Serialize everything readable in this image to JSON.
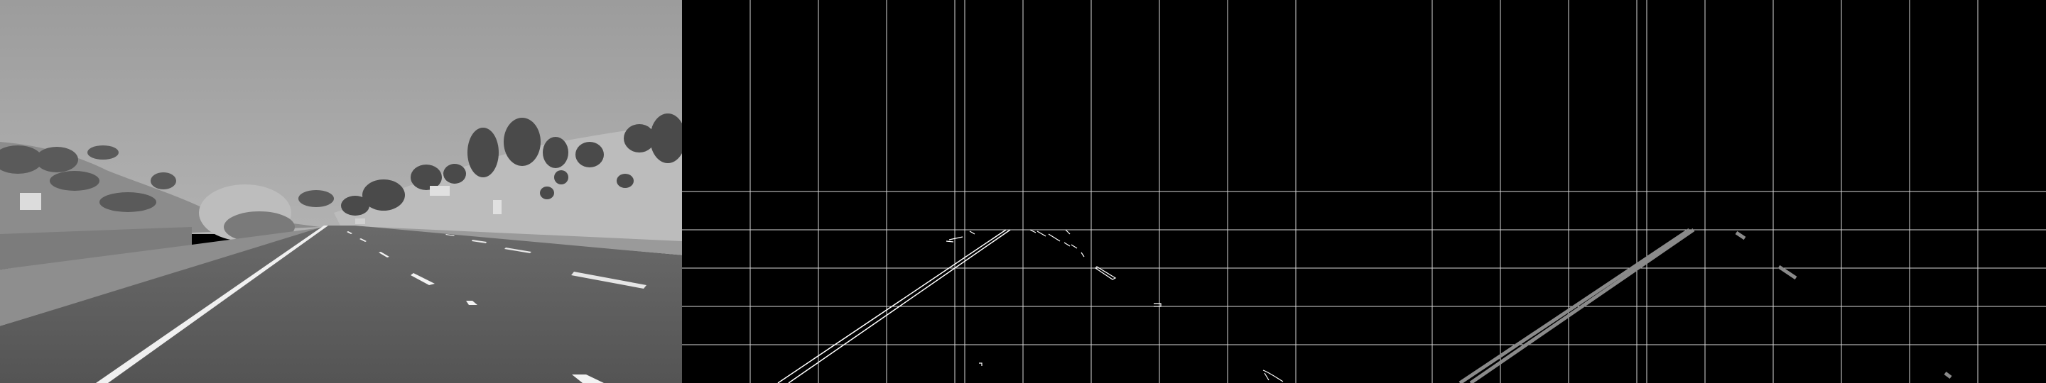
{
  "panels": [
    {
      "name": "grayscale-road-image",
      "kind": "photo"
    },
    {
      "name": "canny-edges-image",
      "kind": "edges"
    },
    {
      "name": "hough-lane-lines-image",
      "kind": "hough"
    }
  ],
  "colors": {
    "background": "#000000",
    "grid": "#d8d8d8",
    "edge": "#ffffff",
    "lane_line": "#8a8a8a",
    "sky": "#a8a8a8",
    "road": "#5e5e5e",
    "hill": "#b0b0b0",
    "tree": "#4a4a4a"
  }
}
